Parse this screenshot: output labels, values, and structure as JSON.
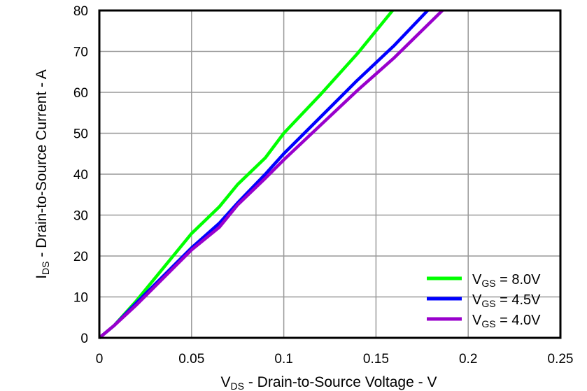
{
  "chart_data": {
    "type": "line",
    "title": "",
    "xlabel": {
      "main": "V",
      "sub": "DS",
      "rest": " - Drain-to-Source Voltage - V"
    },
    "ylabel": {
      "main": "I",
      "sub": "DS",
      "rest": " - Drain-to-Source Current - A"
    },
    "xlim": [
      0,
      0.25
    ],
    "ylim": [
      0,
      80
    ],
    "xticks": [
      "0",
      "0.05",
      "0.1",
      "0.15",
      "0.2",
      "0.25"
    ],
    "yticks": [
      "0",
      "10",
      "20",
      "30",
      "40",
      "50",
      "60",
      "70",
      "80"
    ],
    "grid": true,
    "legend_position": "bottom-right",
    "series": [
      {
        "name": "V_GS = 8.0V",
        "label_main": "V",
        "label_sub": "GS",
        "label_rest": " = 8.0V",
        "color": "#00ff00",
        "x": [
          0,
          0.008,
          0.02,
          0.03,
          0.04,
          0.05,
          0.065,
          0.075,
          0.09,
          0.1,
          0.12,
          0.14,
          0.159
        ],
        "y": [
          0,
          3,
          9,
          14.5,
          20,
          25.5,
          32,
          37.5,
          44,
          50,
          59.5,
          69.5,
          80
        ]
      },
      {
        "name": "V_GS = 4.5V",
        "label_main": "V",
        "label_sub": "GS",
        "label_rest": " = 4.5V",
        "color": "#0000ff",
        "x": [
          0,
          0.008,
          0.02,
          0.03,
          0.04,
          0.05,
          0.065,
          0.075,
          0.09,
          0.1,
          0.12,
          0.14,
          0.16,
          0.178
        ],
        "y": [
          0,
          3,
          8.5,
          13,
          17.5,
          22,
          28,
          33,
          40,
          45,
          54,
          63,
          71.5,
          80
        ]
      },
      {
        "name": "V_GS = 4.0V",
        "label_main": "V",
        "label_sub": "GS",
        "label_rest": " = 4.0V",
        "color": "#9900cc",
        "x": [
          0,
          0.008,
          0.02,
          0.03,
          0.04,
          0.05,
          0.065,
          0.075,
          0.09,
          0.1,
          0.12,
          0.14,
          0.16,
          0.186
        ],
        "y": [
          0,
          3,
          8,
          12.5,
          17,
          21.5,
          27,
          32.5,
          39,
          43.5,
          52,
          60.5,
          68.5,
          80
        ]
      }
    ]
  }
}
